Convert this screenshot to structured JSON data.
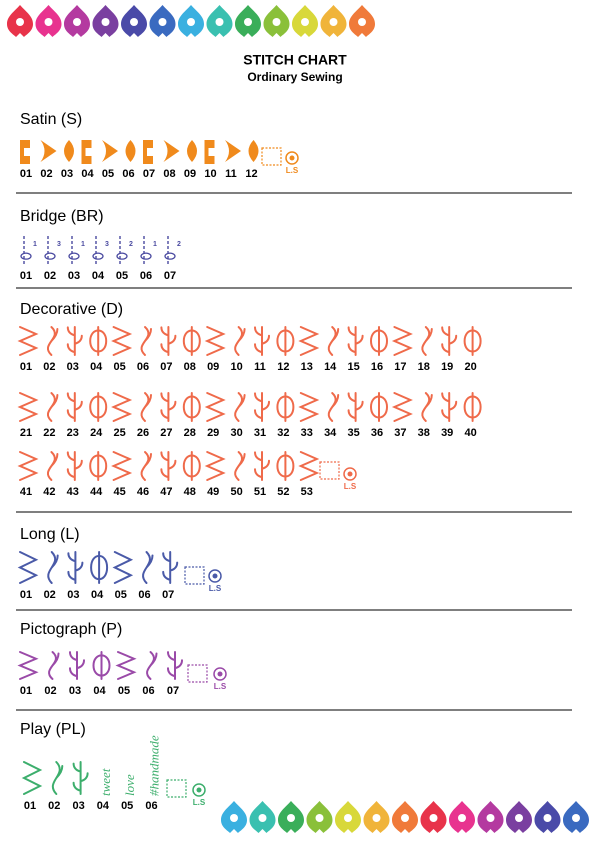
{
  "header": {
    "title": "STITCH CHART",
    "subtitle": "Ordinary Sewing"
  },
  "sections": [
    {
      "title": "Satin (S)",
      "color": "#f08a1c",
      "stitches": [
        "01",
        "02",
        "03",
        "04",
        "05",
        "06",
        "07",
        "08",
        "09",
        "10",
        "11",
        "12"
      ],
      "ls": "L.S"
    },
    {
      "title": "Bridge (BR)",
      "color": "#4a4aa0",
      "stitches": [
        "01",
        "02",
        "03",
        "04",
        "05",
        "06",
        "07"
      ],
      "glyph_labels": [
        "1",
        "3",
        "1",
        "3",
        "2",
        "1",
        "2"
      ]
    },
    {
      "title": "Decorative (D)",
      "color": "#ef6a4a",
      "stitches": [
        "01",
        "02",
        "03",
        "04",
        "05",
        "06",
        "07",
        "08",
        "09",
        "10",
        "11",
        "12",
        "13",
        "14",
        "15",
        "16",
        "17",
        "18",
        "19",
        "20",
        "21",
        "22",
        "23",
        "24",
        "25",
        "26",
        "27",
        "28",
        "29",
        "30",
        "31",
        "32",
        "33",
        "34",
        "35",
        "36",
        "37",
        "38",
        "39",
        "40",
        "41",
        "42",
        "43",
        "44",
        "45",
        "46",
        "47",
        "48",
        "49",
        "50",
        "51",
        "52",
        "53"
      ],
      "ls": "L.S"
    },
    {
      "title": "Long (L)",
      "color": "#4a5aa8",
      "stitches": [
        "01",
        "02",
        "03",
        "04",
        "05",
        "06",
        "07"
      ],
      "ls": "L.S"
    },
    {
      "title": "Pictograph (P)",
      "color": "#9a4aa8",
      "stitches": [
        "01",
        "02",
        "03",
        "04",
        "05",
        "06",
        "07"
      ],
      "ls": "L.S"
    },
    {
      "title": "Play (PL)",
      "color": "#3cae6c",
      "stitches": [
        "01",
        "02",
        "03",
        "04",
        "05",
        "06"
      ],
      "glyph_labels": [
        "tweet",
        "love",
        "#handmade"
      ],
      "ls": "L.S"
    }
  ]
}
